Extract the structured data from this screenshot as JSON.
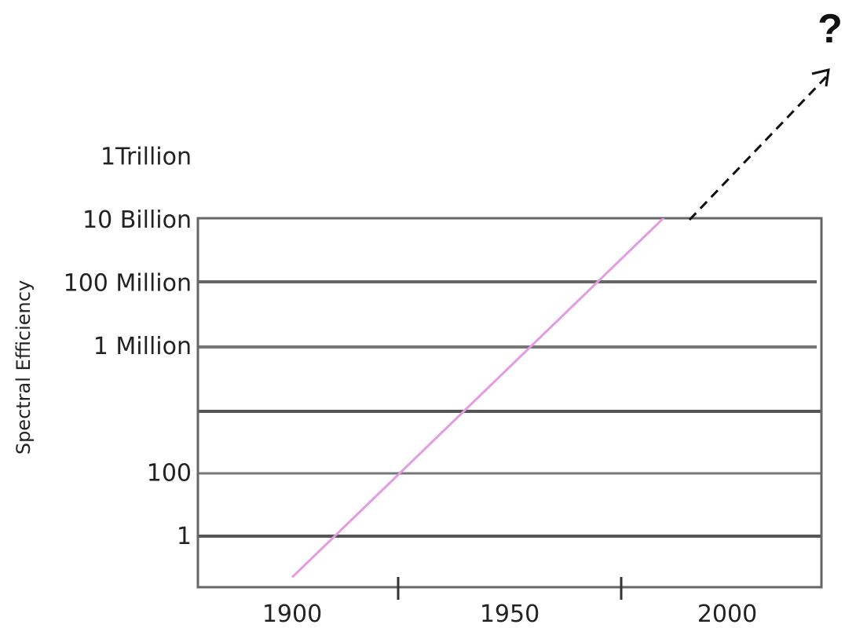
{
  "chart_data": {
    "type": "line",
    "title": "",
    "xlabel": "",
    "ylabel": "Spectral Efficiency",
    "y_scale": "log",
    "x_tick_labels": [
      "1900",
      "1950",
      "2000"
    ],
    "y_tick_labels": [
      "1",
      "100",
      "1 Million",
      "100 Million",
      "10 Billion",
      "1Trillion"
    ],
    "y_tick_values": [
      1,
      100,
      1000000,
      100000000,
      10000000000,
      1000000000000
    ],
    "grid": true,
    "series": [
      {
        "x": [
          1900,
          2000
        ],
        "y": [
          0.05,
          1000000000000
        ],
        "color": "#e39be3"
      }
    ],
    "projection": {
      "style": "dashed-arrow",
      "label": "?"
    }
  }
}
